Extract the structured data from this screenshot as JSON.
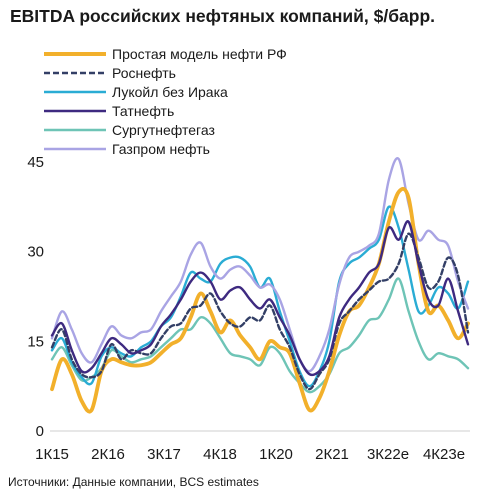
{
  "title": "EBITDA российских нефтяных компаний, $/барр.",
  "source": "Источники: Данные компании, BCS estimates",
  "chart_data": {
    "type": "line",
    "title": "EBITDA российских нефтяных компаний, $/барр.",
    "xlabel": "",
    "ylabel": "",
    "ylim": [
      0,
      45
    ],
    "yticks": [
      0,
      15,
      30,
      45
    ],
    "grid": false,
    "legend_position": "top-left",
    "x_tick_labels": [
      "1К15",
      "2К16",
      "3К17",
      "4К18",
      "1К20",
      "2К21",
      "3К22е",
      "4К23е"
    ],
    "series": [
      {
        "name": "Простая модель нефти РФ",
        "color": "#f2b02b",
        "dash": "solid",
        "values": [
          7.0,
          12.0,
          9.5,
          5.0,
          3.5,
          10.0,
          12.0,
          11.5,
          11.0,
          11.0,
          11.5,
          13.0,
          14.5,
          15.5,
          19.0,
          23.0,
          20.0,
          16.5,
          18.5,
          16.0,
          14.0,
          12.0,
          15.0,
          14.0,
          13.0,
          8.0,
          3.5,
          5.5,
          10.0,
          16.0,
          20.0,
          21.0,
          24.0,
          28.0,
          35.0,
          40.0,
          39.0,
          28.0,
          20.0,
          21.0,
          18.5,
          15.5,
          18.0
        ]
      },
      {
        "name": "Роснефть",
        "color": "#333f66",
        "dash": "dashed",
        "values": [
          14.0,
          17.0,
          12.0,
          9.5,
          9.0,
          10.0,
          14.5,
          12.0,
          13.5,
          13.0,
          13.0,
          15.5,
          17.5,
          18.0,
          20.5,
          21.0,
          23.0,
          20.0,
          18.0,
          17.5,
          19.0,
          18.5,
          21.0,
          17.0,
          14.0,
          9.5,
          7.0,
          9.5,
          12.0,
          18.0,
          20.0,
          22.0,
          23.5,
          25.0,
          25.5,
          28.0,
          33.0,
          29.0,
          24.0,
          25.0,
          29.0,
          26.0,
          16.5
        ]
      },
      {
        "name": "Лукойл без Ирака",
        "color": "#2aacd4",
        "dash": "solid",
        "values": [
          13.5,
          15.5,
          11.5,
          9.0,
          8.0,
          12.5,
          14.0,
          13.0,
          12.5,
          14.0,
          15.0,
          17.5,
          19.0,
          22.5,
          26.5,
          25.5,
          25.0,
          28.0,
          29.0,
          29.0,
          27.5,
          24.0,
          25.5,
          20.0,
          15.0,
          10.0,
          7.5,
          10.0,
          15.0,
          25.0,
          28.0,
          29.0,
          30.5,
          32.0,
          37.5,
          34.0,
          27.0,
          20.0,
          21.0,
          24.0,
          23.0,
          20.5,
          25.0
        ]
      },
      {
        "name": "Татнефть",
        "color": "#3e2a80",
        "dash": "solid",
        "values": [
          16.0,
          18.0,
          13.5,
          10.0,
          10.5,
          13.0,
          15.5,
          14.5,
          13.0,
          13.5,
          14.5,
          17.5,
          19.5,
          22.0,
          25.0,
          26.5,
          25.0,
          22.0,
          23.5,
          24.0,
          22.0,
          20.5,
          22.0,
          19.0,
          16.0,
          12.0,
          9.5,
          10.0,
          12.5,
          19.0,
          22.0,
          24.0,
          26.5,
          28.0,
          34.0,
          32.0,
          35.0,
          28.0,
          22.0,
          21.0,
          25.5,
          20.0,
          14.5
        ]
      },
      {
        "name": "Сургутнефтегаз",
        "color": "#6ec4b6",
        "dash": "solid",
        "values": [
          12.0,
          14.0,
          11.0,
          8.5,
          9.0,
          10.5,
          13.5,
          12.5,
          11.5,
          12.0,
          12.5,
          14.0,
          15.5,
          17.0,
          17.0,
          19.0,
          18.0,
          15.5,
          13.0,
          12.5,
          12.0,
          11.0,
          14.0,
          13.0,
          10.0,
          8.0,
          6.5,
          7.5,
          9.5,
          13.0,
          14.0,
          16.0,
          18.5,
          19.0,
          22.0,
          25.5,
          20.0,
          15.0,
          12.0,
          13.0,
          12.5,
          12.0,
          10.5
        ]
      },
      {
        "name": "Газпром нефть",
        "color": "#a9a4e4",
        "dash": "solid",
        "values": [
          15.5,
          20.0,
          17.0,
          13.0,
          11.5,
          14.5,
          17.5,
          16.0,
          15.5,
          16.5,
          17.0,
          20.0,
          22.5,
          25.0,
          29.5,
          31.5,
          27.5,
          25.5,
          27.0,
          27.5,
          26.0,
          24.0,
          24.5,
          22.0,
          17.0,
          12.0,
          10.0,
          12.5,
          17.0,
          24.5,
          29.0,
          30.0,
          31.0,
          33.0,
          42.0,
          45.5,
          38.0,
          32.0,
          33.5,
          32.0,
          31.0,
          25.0,
          20.5
        ]
      }
    ]
  }
}
